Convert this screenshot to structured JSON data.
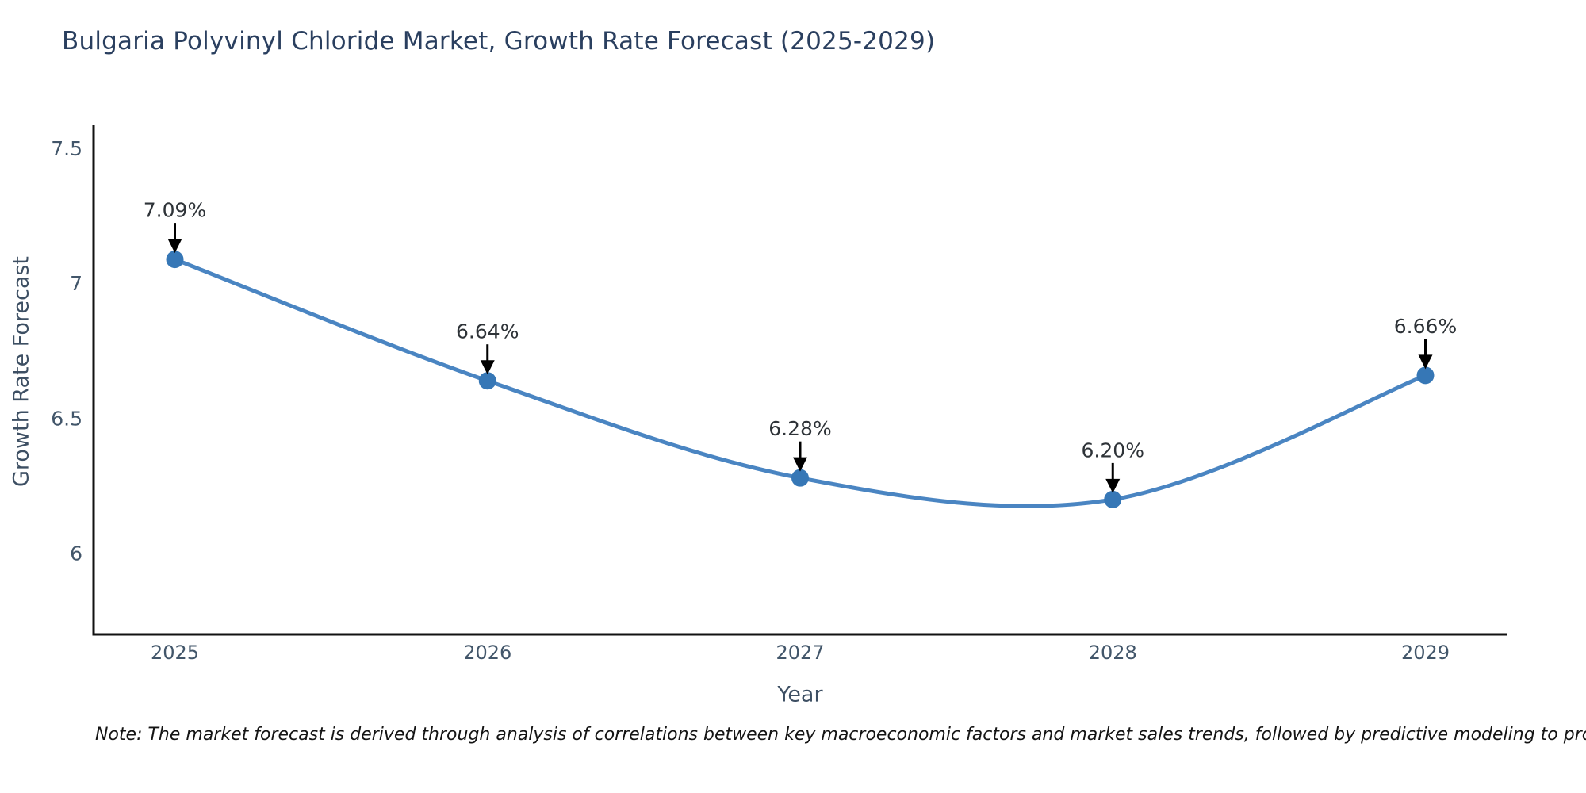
{
  "chart_data": {
    "type": "line",
    "title": "Bulgaria Polyvinyl Chloride Market, Growth Rate Forecast (2025-2029)",
    "xlabel": "Year",
    "ylabel": "Growth Rate Forecast",
    "x": [
      2025,
      2026,
      2027,
      2028,
      2029
    ],
    "values": [
      7.09,
      6.64,
      6.28,
      6.2,
      6.66
    ],
    "point_labels": [
      "7.09%",
      "6.64%",
      "6.28%",
      "6.20%",
      "6.66%"
    ],
    "xticks": [
      2025,
      2026,
      2027,
      2028,
      2029
    ],
    "yticks": [
      6,
      6.5,
      7,
      7.5
    ],
    "xlim": [
      2024.74,
      2029.26
    ],
    "ylim": [
      5.7,
      7.59
    ],
    "line_shape": "spline",
    "grid": false,
    "legend_position": "none",
    "annotation_style": "arrow-down-to-point",
    "colors": {
      "line": "#4a85c2",
      "marker": "#3677b6",
      "axis": "#111111",
      "tick_label": "#42566a",
      "axis_title": "#3d4f63",
      "title": "#2a3f5f",
      "annotation_text": "#2e3338",
      "arrow": "#000000",
      "background": "#ffffff"
    }
  },
  "note": "Note: The market forecast is derived through analysis of correlations between key macroeconomic factors and market sales trends, followed by predictive modeling to project future sales"
}
